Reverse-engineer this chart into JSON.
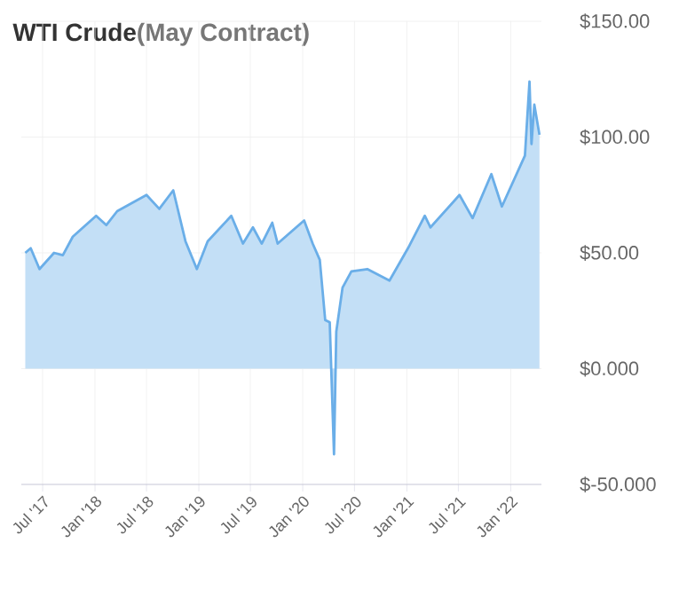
{
  "chart_data": {
    "type": "area",
    "title": "WTI Crude",
    "subtitle": "(May Contract)",
    "color": "#6aaee8",
    "x": [
      "2017-05-01",
      "2017-05-20",
      "2017-06-20",
      "2017-08-10",
      "2017-09-10",
      "2017-10-15",
      "2018-01-05",
      "2018-02-10",
      "2018-03-20",
      "2018-07-01",
      "2018-08-15",
      "2018-10-03",
      "2018-11-15",
      "2018-12-25",
      "2019-02-01",
      "2019-04-25",
      "2019-06-05",
      "2019-07-10",
      "2019-08-10",
      "2019-09-16",
      "2019-10-05",
      "2020-01-06",
      "2020-02-05",
      "2020-03-01",
      "2020-03-20",
      "2020-04-05",
      "2020-04-20",
      "2020-04-28",
      "2020-05-20",
      "2020-06-20",
      "2020-08-15",
      "2020-11-01",
      "2021-01-05",
      "2021-03-05",
      "2021-03-25",
      "2021-07-05",
      "2021-08-20",
      "2021-10-25",
      "2021-12-01",
      "2022-02-20",
      "2022-03-08",
      "2022-03-15",
      "2022-03-25",
      "2022-04-12"
    ],
    "values": [
      50,
      52,
      43,
      50,
      49,
      57,
      66,
      62,
      68,
      75,
      69,
      77,
      55,
      43,
      55,
      66,
      54,
      61,
      54,
      63,
      54,
      64,
      54,
      47,
      21,
      20,
      -37,
      16,
      35,
      42,
      43,
      38,
      52,
      66,
      61,
      75,
      65,
      84,
      70,
      92,
      124,
      97,
      114,
      101
    ],
    "xlim": [
      "2017-04-17",
      "2022-04-19"
    ],
    "xticks": [
      {
        "value": "2017-07-01",
        "label": "Jul '17"
      },
      {
        "value": "2018-01-01",
        "label": "Jan '18"
      },
      {
        "value": "2018-07-01",
        "label": "Jul '18"
      },
      {
        "value": "2019-01-01",
        "label": "Jan '19"
      },
      {
        "value": "2019-07-01",
        "label": "Jul '19"
      },
      {
        "value": "2020-01-01",
        "label": "Jan '20"
      },
      {
        "value": "2020-07-01",
        "label": "Jul '20"
      },
      {
        "value": "2021-01-01",
        "label": "Jan '21"
      },
      {
        "value": "2021-07-01",
        "label": "Jul '21"
      },
      {
        "value": "2022-01-01",
        "label": "Jan '22"
      }
    ],
    "ylim": [
      -50,
      150
    ],
    "yticks": [
      {
        "value": -50,
        "label": "$-50.000"
      },
      {
        "value": 0,
        "label": "$0.000"
      },
      {
        "value": 50,
        "label": "$50.00"
      },
      {
        "value": 100,
        "label": "$100.00"
      },
      {
        "value": 150,
        "label": "$150.00"
      }
    ],
    "grid": true
  }
}
